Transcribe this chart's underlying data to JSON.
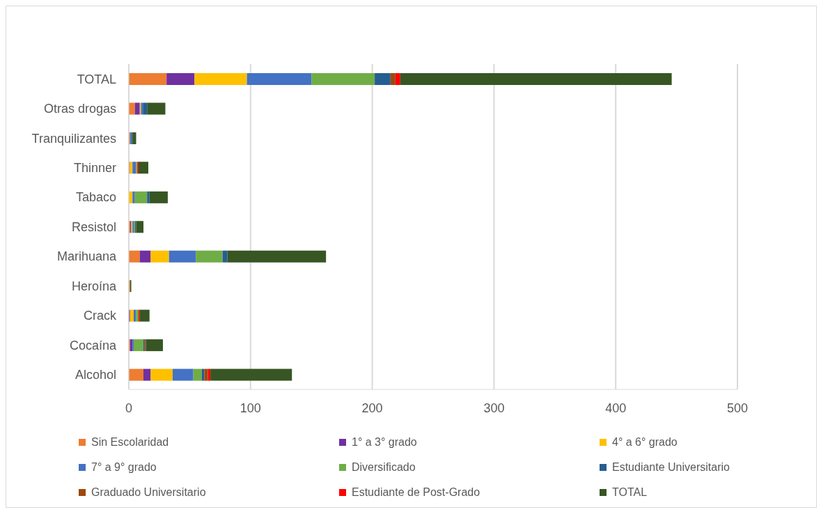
{
  "chart_data": {
    "type": "bar",
    "orientation": "horizontal",
    "stacked": true,
    "categories": [
      "TOTAL",
      "Otras drogas",
      "Tranquilizantes",
      "Thinner",
      "Tabaco",
      "Resistol",
      "Marihuana",
      "Heroína",
      "Crack",
      "Cocaína",
      "Alcohol"
    ],
    "series": [
      {
        "name": "Sin Escolaridad",
        "color": "#ed7d31",
        "values": [
          31,
          5,
          1,
          1,
          0,
          1,
          9,
          1,
          0,
          1,
          12
        ]
      },
      {
        "name": "1° a 3° grado",
        "color": "#7030a0",
        "values": [
          23,
          4,
          0,
          0,
          0,
          1,
          9,
          0,
          1,
          2,
          6
        ]
      },
      {
        "name": "4° a 6° grado",
        "color": "#ffc000",
        "values": [
          43,
          1,
          0,
          2,
          3,
          1,
          15,
          0,
          3,
          0,
          18
        ]
      },
      {
        "name": "7° a 9° grado",
        "color": "#4472c4",
        "values": [
          53,
          2,
          1,
          3,
          2,
          1,
          22,
          0,
          2,
          1,
          17
        ]
      },
      {
        "name": "Diversificado",
        "color": "#70ad47",
        "values": [
          52,
          0,
          0,
          1,
          10,
          1,
          22,
          0,
          2,
          8,
          7
        ]
      },
      {
        "name": "Estudiante Universitario",
        "color": "#255e91",
        "values": [
          13,
          3,
          1,
          0,
          2,
          1,
          4,
          0,
          0,
          1,
          2
        ]
      },
      {
        "name": "Graduado Universitario",
        "color": "#9e480e",
        "values": [
          4,
          0,
          0,
          0,
          0,
          0,
          0,
          0,
          0,
          1,
          3
        ]
      },
      {
        "name": "Estudiante de Post-Grado",
        "color": "#ff0000",
        "values": [
          4,
          0,
          0,
          1,
          0,
          0,
          0,
          0,
          1,
          0,
          2
        ]
      },
      {
        "name": "TOTAL",
        "color": "#375623",
        "values": [
          223,
          15,
          3,
          8,
          15,
          6,
          81,
          1,
          8,
          14,
          67
        ]
      }
    ],
    "xlim": [
      0,
      500
    ],
    "xticks": [
      0,
      100,
      200,
      300,
      400,
      500
    ],
    "grid": "x",
    "legend": "bottom"
  }
}
